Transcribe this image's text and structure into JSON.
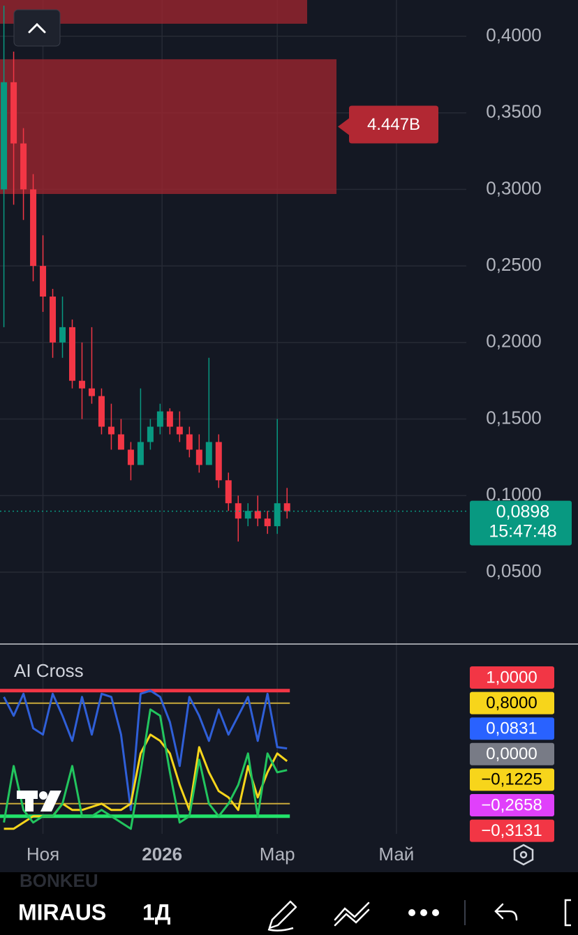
{
  "chart_data": [
    {
      "type": "candlestick",
      "x": [
        2,
        7,
        12,
        17,
        22,
        27,
        32,
        37,
        42,
        47,
        52,
        57,
        62,
        67,
        72,
        77,
        82,
        87,
        92,
        97,
        102,
        107,
        112,
        117,
        122,
        127,
        132,
        137,
        142,
        147
      ],
      "open": [
        0.3,
        0.37,
        0.33,
        0.3,
        0.25,
        0.23,
        0.2,
        0.21,
        0.175,
        0.17,
        0.165,
        0.145,
        0.14,
        0.13,
        0.12,
        0.135,
        0.145,
        0.155,
        0.145,
        0.14,
        0.13,
        0.12,
        0.135,
        0.11,
        0.095,
        0.085,
        0.09,
        0.085,
        0.08,
        0.095
      ],
      "high": [
        0.42,
        0.39,
        0.34,
        0.31,
        0.27,
        0.235,
        0.23,
        0.215,
        0.2,
        0.21,
        0.17,
        0.16,
        0.15,
        0.135,
        0.17,
        0.15,
        0.16,
        0.157,
        0.155,
        0.145,
        0.14,
        0.19,
        0.14,
        0.115,
        0.1,
        0.095,
        0.1,
        0.09,
        0.15,
        0.105
      ],
      "low": [
        0.21,
        0.29,
        0.28,
        0.24,
        0.22,
        0.19,
        0.19,
        0.17,
        0.15,
        0.16,
        0.14,
        0.13,
        0.13,
        0.11,
        0.12,
        0.13,
        0.14,
        0.14,
        0.135,
        0.125,
        0.115,
        0.12,
        0.105,
        0.09,
        0.07,
        0.08,
        0.08,
        0.075,
        0.075,
        0.085
      ],
      "close": [
        0.37,
        0.33,
        0.3,
        0.25,
        0.23,
        0.2,
        0.21,
        0.175,
        0.17,
        0.165,
        0.145,
        0.14,
        0.13,
        0.12,
        0.135,
        0.145,
        0.155,
        0.145,
        0.14,
        0.13,
        0.12,
        0.135,
        0.11,
        0.095,
        0.085,
        0.09,
        0.085,
        0.08,
        0.095,
        0.0898
      ],
      "colors": {
        "up": "#089981",
        "down": "#f23645"
      },
      "xlim": [
        0,
        296
      ],
      "xticks": [
        {
          "value": 22,
          "label": "Ноя"
        },
        {
          "value": 83,
          "label": "2026"
        },
        {
          "value": 142,
          "label": "Мар"
        },
        {
          "value": 203,
          "label": "Май"
        }
      ],
      "ylim": [
        0.0035,
        0.4237
      ],
      "yticks": [
        {
          "value": 0.05,
          "label": "0,0500"
        },
        {
          "value": 0.1,
          "label": "0,1000"
        },
        {
          "value": 0.15,
          "label": "0,1500"
        },
        {
          "value": 0.2,
          "label": "0,2000"
        },
        {
          "value": 0.25,
          "label": "0,2500"
        },
        {
          "value": 0.3,
          "label": "0,3000"
        },
        {
          "value": 0.35,
          "label": "0,3500"
        },
        {
          "value": 0.4,
          "label": "0,4000"
        }
      ],
      "grid": true,
      "last_price": {
        "value": 0.0898,
        "label": "0,0898"
      },
      "countdown": "15:47:48",
      "zones": [
        {
          "top": 0.4237,
          "bottom": 0.4082
        },
        {
          "top": 0.385,
          "bottom": 0.297,
          "label": "4.447B"
        }
      ]
    },
    {
      "type": "line",
      "title": "AI Cross",
      "x": [
        2,
        7,
        12,
        17,
        22,
        27,
        32,
        37,
        42,
        47,
        52,
        57,
        62,
        67,
        72,
        77,
        82,
        87,
        92,
        97,
        102,
        107,
        112,
        117,
        122,
        127,
        132,
        137,
        142,
        147
      ],
      "series": [
        {
          "color": "#2f5fd8",
          "values": [
            0.9,
            0.6,
            0.95,
            0.4,
            0.3,
            0.95,
            0.6,
            0.2,
            0.9,
            0.3,
            0.95,
            0.9,
            0.3,
            -0.9,
            0.95,
            1.0,
            0.9,
            0.5,
            -0.2,
            0.9,
            0.6,
            0.2,
            0.7,
            0.3,
            0.6,
            0.9,
            0.2,
            0.95,
            0.1,
            0.08
          ]
        },
        {
          "color": "#f7d51b",
          "values": [
            -1.2,
            -1.2,
            -1.1,
            -1.0,
            -1.0,
            -1.0,
            -0.8,
            -0.9,
            -0.9,
            -0.85,
            -0.8,
            -0.9,
            -0.9,
            -0.8,
            0.0,
            0.3,
            0.2,
            0.0,
            -0.5,
            -0.9,
            0.1,
            -0.3,
            -0.6,
            -0.7,
            -0.9,
            -0.2,
            -0.7,
            -0.3,
            0.0,
            -0.1225
          ]
        },
        {
          "color": "#22c55e",
          "values": [
            -1.1,
            -0.2,
            -0.9,
            -1.1,
            -1.0,
            -1.0,
            -0.8,
            -0.2,
            -1.0,
            -1.0,
            -0.9,
            -1.0,
            -1.1,
            -1.2,
            -0.3,
            0.7,
            0.6,
            -0.3,
            -1.1,
            -1.0,
            -0.1,
            -0.8,
            -1.0,
            -0.8,
            -0.5,
            0.0,
            -1.0,
            0.0,
            -0.3,
            -0.2658
          ]
        }
      ],
      "ylim": [
        -1.28,
        1.72
      ],
      "levels": [
        {
          "value": 1,
          "color": "#f23645"
        },
        {
          "value": 0.8,
          "color": "#c9a93a"
        },
        {
          "value": -0.8,
          "color": "#c9a93a"
        },
        {
          "value": -1,
          "color": "#22e36b"
        }
      ],
      "tags": [
        {
          "label": "1,0000",
          "color": "#f23645",
          "text_color": "#ffffff"
        },
        {
          "label": "0,8000",
          "color": "#f7d51b",
          "text_color": "#000000"
        },
        {
          "label": "0,0831",
          "color": "#2962ff",
          "text_color": "#ffffff"
        },
        {
          "label": "0,0000",
          "color": "#787b86",
          "text_color": "#ffffff"
        },
        {
          "label": "−0,1225",
          "color": "#f7d51b",
          "text_color": "#000000"
        },
        {
          "label": "−0,2658",
          "color": "#e040fb",
          "text_color": "#ffffff"
        },
        {
          "label": "−0,3131",
          "color": "#f23645",
          "text_color": "#ffffff"
        }
      ]
    }
  ],
  "ui": {
    "ticker": "MIRAUS",
    "interval": "1Д",
    "watermark": "BONKEU"
  }
}
